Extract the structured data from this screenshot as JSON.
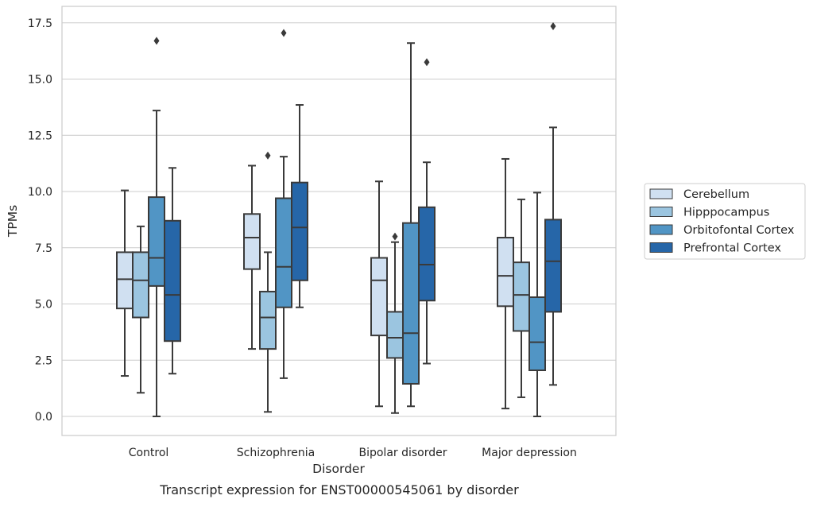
{
  "chart_data": {
    "type": "box",
    "title": "",
    "caption": "Transcript expression for ENST00000545061 by disorder",
    "xlabel": "Disorder",
    "ylabel": "TPMs",
    "ylim": [
      -0.8,
      18.2
    ],
    "yticks": [
      0.0,
      2.5,
      5.0,
      7.5,
      10.0,
      12.5,
      15.0,
      17.5
    ],
    "ytick_labels": [
      "0.0",
      "2.5",
      "5.0",
      "7.5",
      "10.0",
      "12.5",
      "15.0",
      "17.5"
    ],
    "grid": "horizontal",
    "legend_position": "right",
    "categories": [
      "Control",
      "Schizophrenia",
      "Bipolar disorder",
      "Major depression"
    ],
    "series": [
      {
        "name": "Cerebellum",
        "color": "#d0e0f1",
        "boxes": [
          {
            "whisker_low": 1.8,
            "q1": 4.8,
            "median": 6.1,
            "q3": 7.3,
            "whisker_high": 10.05,
            "outliers": []
          },
          {
            "whisker_low": 3.0,
            "q1": 6.55,
            "median": 7.95,
            "q3": 9.0,
            "whisker_high": 11.15,
            "outliers": []
          },
          {
            "whisker_low": 0.45,
            "q1": 3.6,
            "median": 6.05,
            "q3": 7.05,
            "whisker_high": 10.45,
            "outliers": []
          },
          {
            "whisker_low": 0.35,
            "q1": 4.9,
            "median": 6.25,
            "q3": 7.95,
            "whisker_high": 11.45,
            "outliers": []
          }
        ]
      },
      {
        "name": "Hipppocampus",
        "color": "#9bc5e0",
        "boxes": [
          {
            "whisker_low": 1.05,
            "q1": 4.4,
            "median": 6.05,
            "q3": 7.3,
            "whisker_high": 8.45,
            "outliers": []
          },
          {
            "whisker_low": 0.2,
            "q1": 3.0,
            "median": 4.4,
            "q3": 5.55,
            "whisker_high": 7.3,
            "outliers": [
              11.6
            ]
          },
          {
            "whisker_low": 0.15,
            "q1": 2.6,
            "median": 3.5,
            "q3": 4.65,
            "whisker_high": 7.75,
            "outliers": [
              8.0
            ]
          },
          {
            "whisker_low": 0.85,
            "q1": 3.8,
            "median": 5.4,
            "q3": 6.85,
            "whisker_high": 9.65,
            "outliers": []
          }
        ]
      },
      {
        "name": "Orbitofontal Cortex",
        "color": "#5195c5",
        "boxes": [
          {
            "whisker_low": 0.0,
            "q1": 5.8,
            "median": 7.05,
            "q3": 9.75,
            "whisker_high": 13.6,
            "outliers": [
              16.7
            ]
          },
          {
            "whisker_low": 1.7,
            "q1": 4.85,
            "median": 6.65,
            "q3": 9.7,
            "whisker_high": 11.55,
            "outliers": [
              17.05
            ]
          },
          {
            "whisker_low": 0.45,
            "q1": 1.45,
            "median": 3.7,
            "q3": 8.6,
            "whisker_high": 16.6,
            "outliers": []
          },
          {
            "whisker_low": 0.0,
            "q1": 2.05,
            "median": 3.3,
            "q3": 5.3,
            "whisker_high": 9.95,
            "outliers": []
          }
        ]
      },
      {
        "name": "Prefrontal Cortex",
        "color": "#2666a8",
        "boxes": [
          {
            "whisker_low": 1.9,
            "q1": 3.35,
            "median": 5.4,
            "q3": 8.7,
            "whisker_high": 11.05,
            "outliers": []
          },
          {
            "whisker_low": 4.85,
            "q1": 6.05,
            "median": 8.4,
            "q3": 10.4,
            "whisker_high": 13.85,
            "outliers": []
          },
          {
            "whisker_low": 2.35,
            "q1": 5.15,
            "median": 6.75,
            "q3": 9.3,
            "whisker_high": 11.3,
            "outliers": [
              15.75
            ]
          },
          {
            "whisker_low": 1.4,
            "q1": 4.65,
            "median": 6.9,
            "q3": 8.75,
            "whisker_high": 12.85,
            "outliers": [
              17.35
            ]
          }
        ]
      }
    ]
  }
}
